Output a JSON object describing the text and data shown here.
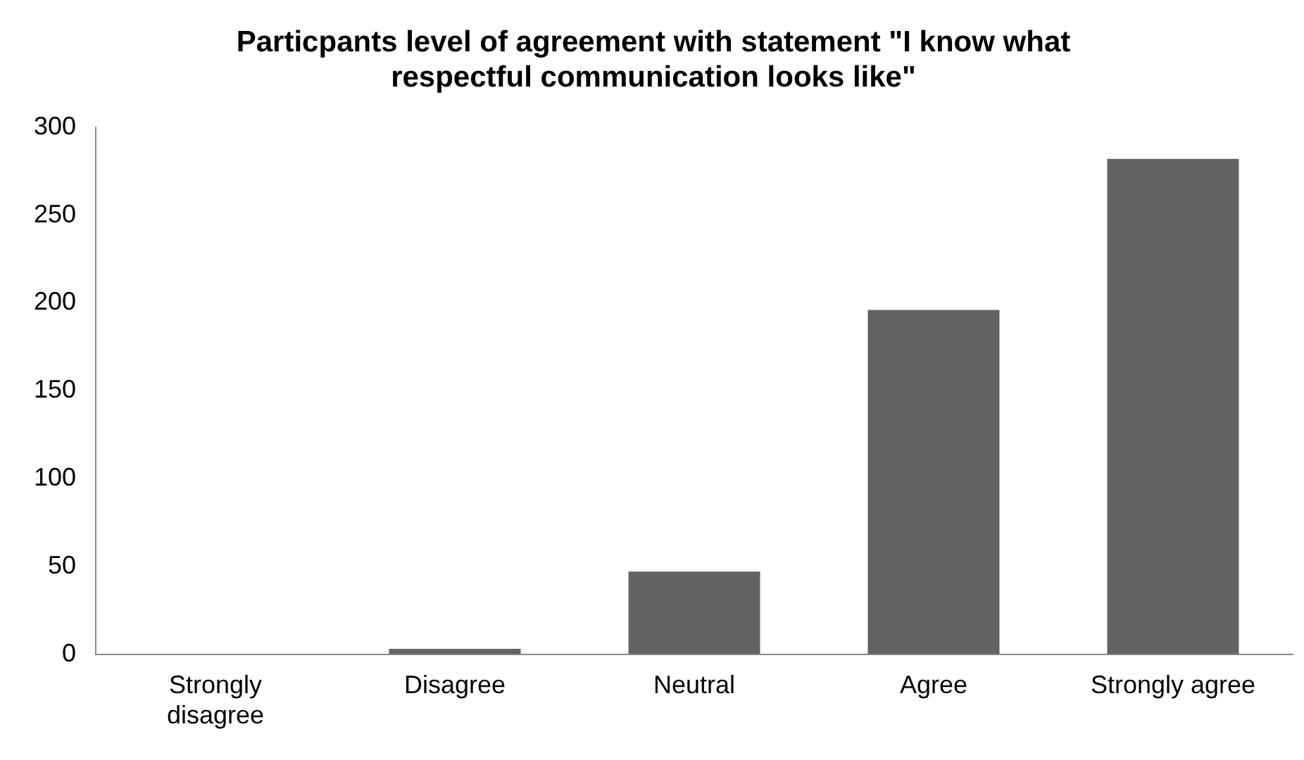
{
  "chart_data": {
    "type": "bar",
    "title": "Particpants level of agreement with statement \"I know what respectful communication looks like\"",
    "categories": [
      "Strongly disagree",
      "Disagree",
      "Neutral",
      "Agree",
      "Strongly agree"
    ],
    "values": [
      0,
      3,
      47,
      196,
      282
    ],
    "color": "#636363",
    "ylim": [
      0,
      300
    ],
    "yticks": [
      0,
      50,
      100,
      150,
      200,
      250,
      300
    ],
    "grid": false,
    "legend": false
  }
}
